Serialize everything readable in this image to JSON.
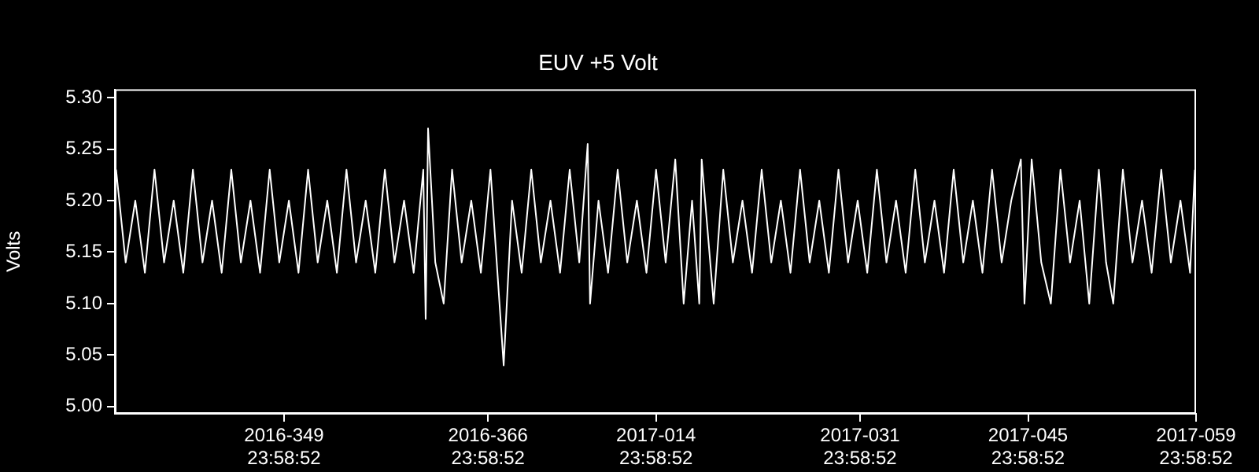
{
  "chart_data": {
    "type": "line",
    "title": "EUV +5 Volt",
    "ylabel": "Volts",
    "xlim": [
      "2016-11-30T21:36",
      "2017-02-28T23:59"
    ],
    "ylim": [
      4.993,
      5.308
    ],
    "xticks": [
      {
        "value": "2016-12-14T23:59",
        "label": "2016-349\n23:58:52"
      },
      {
        "value": "2016-12-31T23:59",
        "label": "2016-366\n23:58:52"
      },
      {
        "value": "2017-01-14T23:59",
        "label": "2017-014\n23:58:52"
      },
      {
        "value": "2017-01-31T23:59",
        "label": "2017-031\n23:58:52"
      },
      {
        "value": "2017-02-14T23:59",
        "label": "2017-045\n23:58:52"
      },
      {
        "value": "2017-02-28T23:59",
        "label": "2017-059\n23:58:52"
      }
    ],
    "yticks": [
      {
        "value": 5.0,
        "label": "5.00"
      },
      {
        "value": 5.05,
        "label": "5.05"
      },
      {
        "value": 5.1,
        "label": "5.10"
      },
      {
        "value": 5.15,
        "label": "5.15"
      },
      {
        "value": 5.2,
        "label": "5.20"
      },
      {
        "value": 5.25,
        "label": "5.25"
      },
      {
        "value": 5.3,
        "label": "5.30"
      }
    ],
    "grid": false,
    "legend": false,
    "marker": "none",
    "line_style": "solid",
    "series": [
      {
        "color": "#ffffff",
        "x": [
          "2016-12-01T00:00",
          "2016-12-01T19:12",
          "2016-12-02T14:24",
          "2016-12-03T09:36",
          "2016-12-04T04:48",
          "2016-12-05T00:00",
          "2016-12-05T19:12",
          "2016-12-06T14:24",
          "2016-12-07T09:36",
          "2016-12-08T04:48",
          "2016-12-09T00:00",
          "2016-12-09T19:12",
          "2016-12-10T14:24",
          "2016-12-11T09:36",
          "2016-12-12T04:48",
          "2016-12-13T00:00",
          "2016-12-13T19:12",
          "2016-12-14T14:24",
          "2016-12-15T09:36",
          "2016-12-16T04:48",
          "2016-12-17T00:00",
          "2016-12-17T19:12",
          "2016-12-18T14:24",
          "2016-12-19T09:36",
          "2016-12-20T04:48",
          "2016-12-21T00:00",
          "2016-12-21T19:12",
          "2016-12-22T14:24",
          "2016-12-23T09:36",
          "2016-12-24T04:48",
          "2016-12-25T00:00",
          "2016-12-25T19:12",
          "2016-12-26T14:24",
          "2016-12-26T19:12",
          "2016-12-27T00:00",
          "2016-12-27T14:24",
          "2016-12-28T07:12",
          "2016-12-29T00:00",
          "2016-12-29T19:12",
          "2016-12-30T14:24",
          "2016-12-31T09:36",
          "2017-01-01T04:48",
          "2017-01-02T07:12",
          "2017-01-03T00:00",
          "2017-01-03T19:12",
          "2017-01-04T14:24",
          "2017-01-05T09:36",
          "2017-01-06T04:48",
          "2017-01-07T00:00",
          "2017-01-07T19:12",
          "2017-01-08T14:24",
          "2017-01-09T07:12",
          "2017-01-09T12:00",
          "2017-01-10T04:48",
          "2017-01-11T00:00",
          "2017-01-11T19:12",
          "2017-01-12T14:24",
          "2017-01-13T09:36",
          "2017-01-14T04:48",
          "2017-01-15T00:00",
          "2017-01-15T19:12",
          "2017-01-16T14:24",
          "2017-01-17T07:12",
          "2017-01-18T00:00",
          "2017-01-18T14:24",
          "2017-01-18T19:12",
          "2017-01-19T19:12",
          "2017-01-20T14:24",
          "2017-01-21T09:36",
          "2017-01-22T04:48",
          "2017-01-23T00:00",
          "2017-01-23T19:12",
          "2017-01-24T14:24",
          "2017-01-25T09:36",
          "2017-01-26T04:48",
          "2017-01-27T00:00",
          "2017-01-27T19:12",
          "2017-01-28T14:24",
          "2017-01-29T09:36",
          "2017-01-30T04:48",
          "2017-01-31T00:00",
          "2017-01-31T19:12",
          "2017-02-01T14:24",
          "2017-02-02T09:36",
          "2017-02-03T04:48",
          "2017-02-04T00:00",
          "2017-02-04T19:12",
          "2017-02-05T14:24",
          "2017-02-06T09:36",
          "2017-02-07T04:48",
          "2017-02-08T00:00",
          "2017-02-08T19:12",
          "2017-02-09T14:24",
          "2017-02-10T09:36",
          "2017-02-11T04:48",
          "2017-02-12T00:00",
          "2017-02-12T19:12",
          "2017-02-13T14:24",
          "2017-02-14T09:36",
          "2017-02-14T16:48",
          "2017-02-15T07:12",
          "2017-02-16T02:24",
          "2017-02-16T21:36",
          "2017-02-17T16:48",
          "2017-02-18T12:00",
          "2017-02-19T07:12",
          "2017-02-20T02:24",
          "2017-02-20T21:36",
          "2017-02-21T12:00",
          "2017-02-22T02:24",
          "2017-02-22T21:36",
          "2017-02-23T16:48",
          "2017-02-24T12:00",
          "2017-02-25T07:12",
          "2017-02-26T02:24",
          "2017-02-26T21:36",
          "2017-02-27T16:48",
          "2017-02-28T12:00",
          "2017-02-28T21:36"
        ],
        "values": [
          5.23,
          5.14,
          5.2,
          5.13,
          5.23,
          5.14,
          5.2,
          5.13,
          5.23,
          5.14,
          5.2,
          5.13,
          5.23,
          5.14,
          5.2,
          5.13,
          5.23,
          5.14,
          5.2,
          5.13,
          5.23,
          5.14,
          5.2,
          5.13,
          5.23,
          5.14,
          5.2,
          5.13,
          5.23,
          5.14,
          5.2,
          5.13,
          5.23,
          5.085,
          5.27,
          5.14,
          5.1,
          5.23,
          5.14,
          5.2,
          5.13,
          5.23,
          5.04,
          5.2,
          5.13,
          5.23,
          5.14,
          5.2,
          5.13,
          5.23,
          5.14,
          5.255,
          5.1,
          5.2,
          5.13,
          5.23,
          5.14,
          5.2,
          5.13,
          5.23,
          5.14,
          5.24,
          5.1,
          5.2,
          5.1,
          5.24,
          5.1,
          5.23,
          5.14,
          5.2,
          5.13,
          5.23,
          5.14,
          5.2,
          5.13,
          5.23,
          5.14,
          5.2,
          5.13,
          5.23,
          5.14,
          5.2,
          5.13,
          5.23,
          5.14,
          5.2,
          5.13,
          5.23,
          5.14,
          5.2,
          5.13,
          5.23,
          5.14,
          5.2,
          5.13,
          5.23,
          5.14,
          5.2,
          5.24,
          5.1,
          5.24,
          5.14,
          5.1,
          5.23,
          5.14,
          5.2,
          5.1,
          5.23,
          5.14,
          5.1,
          5.23,
          5.14,
          5.2,
          5.13,
          5.23,
          5.14,
          5.2,
          5.13,
          5.23
        ]
      }
    ]
  }
}
